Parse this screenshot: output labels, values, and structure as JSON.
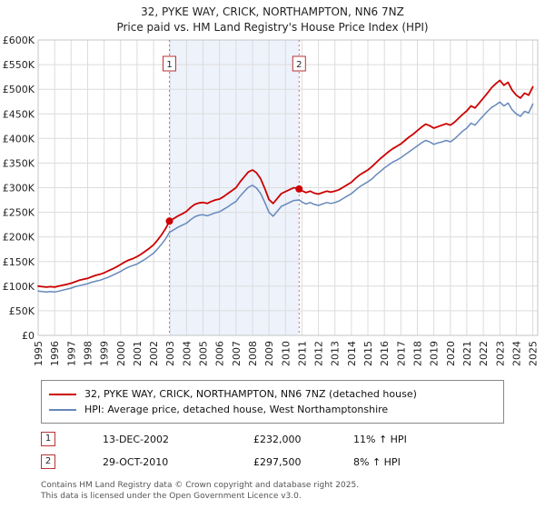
{
  "chart_data": {
    "type": "line",
    "title": "32, PYKE WAY, CRICK, NORTHAMPTON, NN6 7NZ",
    "subtitle": "Price paid vs. HM Land Registry's House Price Index (HPI)",
    "x_range": [
      1995,
      2025.3
    ],
    "y_range_k": [
      0,
      600
    ],
    "y_ticks": [
      {
        "v": 600,
        "label": "£600K"
      },
      {
        "v": 550,
        "label": "£550K"
      },
      {
        "v": 500,
        "label": "£500K"
      },
      {
        "v": 450,
        "label": "£450K"
      },
      {
        "v": 400,
        "label": "£400K"
      },
      {
        "v": 350,
        "label": "£350K"
      },
      {
        "v": 300,
        "label": "£300K"
      },
      {
        "v": 250,
        "label": "£250K"
      },
      {
        "v": 200,
        "label": "£200K"
      },
      {
        "v": 150,
        "label": "£150K"
      },
      {
        "v": 100,
        "label": "£100K"
      },
      {
        "v": 50,
        "label": "£50K"
      },
      {
        "v": 0,
        "label": "£0"
      }
    ],
    "x_ticks": [
      1995,
      1996,
      1997,
      1998,
      1999,
      2000,
      2001,
      2002,
      2003,
      2004,
      2005,
      2006,
      2007,
      2008,
      2009,
      2010,
      2011,
      2012,
      2013,
      2014,
      2015,
      2016,
      2017,
      2018,
      2019,
      2020,
      2021,
      2022,
      2023,
      2024,
      2025
    ],
    "band": {
      "from": 2002.96,
      "to": 2010.83,
      "color": "#edf2fb"
    },
    "vline_color": "#e06666",
    "grid": true,
    "legend_position": "bottom",
    "series": [
      {
        "name": "32, PYKE WAY, CRICK, NORTHAMPTON, NN6 7NZ (detached house)",
        "color": "#cc0000",
        "width": 1.8,
        "points": [
          [
            1995,
            100
          ],
          [
            1995.25,
            99
          ],
          [
            1995.5,
            98
          ],
          [
            1995.75,
            99
          ],
          [
            1996,
            98
          ],
          [
            1996.25,
            100
          ],
          [
            1996.5,
            102
          ],
          [
            1996.75,
            104
          ],
          [
            1997,
            106
          ],
          [
            1997.25,
            109
          ],
          [
            1997.5,
            112
          ],
          [
            1997.75,
            114
          ],
          [
            1998,
            116
          ],
          [
            1998.25,
            119
          ],
          [
            1998.5,
            122
          ],
          [
            1998.75,
            124
          ],
          [
            1999,
            127
          ],
          [
            1999.25,
            131
          ],
          [
            1999.5,
            135
          ],
          [
            1999.75,
            139
          ],
          [
            2000,
            144
          ],
          [
            2000.25,
            149
          ],
          [
            2000.5,
            153
          ],
          [
            2000.75,
            156
          ],
          [
            2001,
            160
          ],
          [
            2001.25,
            165
          ],
          [
            2001.5,
            171
          ],
          [
            2001.75,
            177
          ],
          [
            2002,
            184
          ],
          [
            2002.25,
            194
          ],
          [
            2002.5,
            205
          ],
          [
            2002.75,
            218
          ],
          [
            2002.96,
            232
          ],
          [
            2003.25,
            238
          ],
          [
            2003.5,
            243
          ],
          [
            2003.75,
            247
          ],
          [
            2004,
            252
          ],
          [
            2004.25,
            260
          ],
          [
            2004.5,
            266
          ],
          [
            2004.75,
            269
          ],
          [
            2005,
            270
          ],
          [
            2005.25,
            268
          ],
          [
            2005.5,
            272
          ],
          [
            2005.75,
            275
          ],
          [
            2006,
            277
          ],
          [
            2006.25,
            282
          ],
          [
            2006.5,
            288
          ],
          [
            2006.75,
            294
          ],
          [
            2007,
            300
          ],
          [
            2007.25,
            312
          ],
          [
            2007.5,
            322
          ],
          [
            2007.75,
            332
          ],
          [
            2008,
            336
          ],
          [
            2008.25,
            330
          ],
          [
            2008.5,
            318
          ],
          [
            2008.75,
            298
          ],
          [
            2009,
            276
          ],
          [
            2009.25,
            268
          ],
          [
            2009.5,
            278
          ],
          [
            2009.75,
            288
          ],
          [
            2010,
            292
          ],
          [
            2010.25,
            296
          ],
          [
            2010.5,
            300
          ],
          [
            2010.83,
            297.5
          ],
          [
            2011,
            294
          ],
          [
            2011.25,
            290
          ],
          [
            2011.5,
            293
          ],
          [
            2011.75,
            289
          ],
          [
            2012,
            287
          ],
          [
            2012.25,
            290
          ],
          [
            2012.5,
            293
          ],
          [
            2012.75,
            291
          ],
          [
            2013,
            293
          ],
          [
            2013.25,
            296
          ],
          [
            2013.5,
            301
          ],
          [
            2013.75,
            306
          ],
          [
            2014,
            311
          ],
          [
            2014.25,
            319
          ],
          [
            2014.5,
            326
          ],
          [
            2014.75,
            331
          ],
          [
            2015,
            336
          ],
          [
            2015.25,
            343
          ],
          [
            2015.5,
            351
          ],
          [
            2015.75,
            359
          ],
          [
            2016,
            366
          ],
          [
            2016.25,
            373
          ],
          [
            2016.5,
            379
          ],
          [
            2016.75,
            384
          ],
          [
            2017,
            389
          ],
          [
            2017.25,
            396
          ],
          [
            2017.5,
            403
          ],
          [
            2017.75,
            409
          ],
          [
            2018,
            416
          ],
          [
            2018.25,
            423
          ],
          [
            2018.5,
            429
          ],
          [
            2018.75,
            426
          ],
          [
            2019,
            421
          ],
          [
            2019.25,
            424
          ],
          [
            2019.5,
            427
          ],
          [
            2019.75,
            430
          ],
          [
            2020,
            427
          ],
          [
            2020.25,
            433
          ],
          [
            2020.5,
            441
          ],
          [
            2020.75,
            449
          ],
          [
            2021,
            456
          ],
          [
            2021.25,
            466
          ],
          [
            2021.5,
            462
          ],
          [
            2021.75,
            472
          ],
          [
            2022,
            482
          ],
          [
            2022.25,
            492
          ],
          [
            2022.5,
            503
          ],
          [
            2022.75,
            511
          ],
          [
            2023,
            518
          ],
          [
            2023.25,
            508
          ],
          [
            2023.5,
            514
          ],
          [
            2023.75,
            498
          ],
          [
            2024,
            488
          ],
          [
            2024.25,
            482
          ],
          [
            2024.5,
            492
          ],
          [
            2024.75,
            488
          ],
          [
            2025,
            505
          ]
        ]
      },
      {
        "name": "HPI: Average price, detached house, West Northamptonshire",
        "color": "#6688bb",
        "width": 1.5,
        "points": [
          [
            1995,
            90
          ],
          [
            1995.25,
            89
          ],
          [
            1995.5,
            88
          ],
          [
            1995.75,
            89
          ],
          [
            1996,
            88
          ],
          [
            1996.25,
            90
          ],
          [
            1996.5,
            92
          ],
          [
            1996.75,
            94
          ],
          [
            1997,
            96
          ],
          [
            1997.25,
            99
          ],
          [
            1997.5,
            101
          ],
          [
            1997.75,
            103
          ],
          [
            1998,
            105
          ],
          [
            1998.25,
            108
          ],
          [
            1998.5,
            110
          ],
          [
            1998.75,
            112
          ],
          [
            1999,
            115
          ],
          [
            1999.25,
            118
          ],
          [
            1999.5,
            122
          ],
          [
            1999.75,
            126
          ],
          [
            2000,
            130
          ],
          [
            2000.25,
            135
          ],
          [
            2000.5,
            139
          ],
          [
            2000.75,
            142
          ],
          [
            2001,
            145
          ],
          [
            2001.25,
            150
          ],
          [
            2001.5,
            155
          ],
          [
            2001.75,
            161
          ],
          [
            2002,
            167
          ],
          [
            2002.25,
            176
          ],
          [
            2002.5,
            186
          ],
          [
            2002.75,
            197
          ],
          [
            2002.96,
            209
          ],
          [
            2003.25,
            215
          ],
          [
            2003.5,
            220
          ],
          [
            2003.75,
            224
          ],
          [
            2004,
            228
          ],
          [
            2004.25,
            235
          ],
          [
            2004.5,
            241
          ],
          [
            2004.75,
            244
          ],
          [
            2005,
            245
          ],
          [
            2005.25,
            243
          ],
          [
            2005.5,
            246
          ],
          [
            2005.75,
            249
          ],
          [
            2006,
            251
          ],
          [
            2006.25,
            256
          ],
          [
            2006.5,
            261
          ],
          [
            2006.75,
            267
          ],
          [
            2007,
            272
          ],
          [
            2007.25,
            283
          ],
          [
            2007.5,
            292
          ],
          [
            2007.75,
            301
          ],
          [
            2008,
            305
          ],
          [
            2008.25,
            299
          ],
          [
            2008.5,
            288
          ],
          [
            2008.75,
            270
          ],
          [
            2009,
            250
          ],
          [
            2009.25,
            242
          ],
          [
            2009.5,
            252
          ],
          [
            2009.75,
            262
          ],
          [
            2010,
            266
          ],
          [
            2010.25,
            270
          ],
          [
            2010.5,
            274
          ],
          [
            2010.83,
            275
          ],
          [
            2011,
            271
          ],
          [
            2011.25,
            267
          ],
          [
            2011.5,
            270
          ],
          [
            2011.75,
            266
          ],
          [
            2012,
            264
          ],
          [
            2012.25,
            267
          ],
          [
            2012.5,
            270
          ],
          [
            2012.75,
            268
          ],
          [
            2013,
            270
          ],
          [
            2013.25,
            273
          ],
          [
            2013.5,
            278
          ],
          [
            2013.75,
            283
          ],
          [
            2014,
            288
          ],
          [
            2014.25,
            295
          ],
          [
            2014.5,
            302
          ],
          [
            2014.75,
            307
          ],
          [
            2015,
            312
          ],
          [
            2015.25,
            318
          ],
          [
            2015.5,
            326
          ],
          [
            2015.75,
            333
          ],
          [
            2016,
            340
          ],
          [
            2016.25,
            346
          ],
          [
            2016.5,
            352
          ],
          [
            2016.75,
            356
          ],
          [
            2017,
            361
          ],
          [
            2017.25,
            367
          ],
          [
            2017.5,
            373
          ],
          [
            2017.75,
            379
          ],
          [
            2018,
            385
          ],
          [
            2018.25,
            391
          ],
          [
            2018.5,
            396
          ],
          [
            2018.75,
            393
          ],
          [
            2019,
            388
          ],
          [
            2019.25,
            391
          ],
          [
            2019.5,
            393
          ],
          [
            2019.75,
            396
          ],
          [
            2020,
            393
          ],
          [
            2020.25,
            399
          ],
          [
            2020.5,
            407
          ],
          [
            2020.75,
            415
          ],
          [
            2021,
            421
          ],
          [
            2021.25,
            431
          ],
          [
            2021.5,
            427
          ],
          [
            2021.75,
            437
          ],
          [
            2022,
            446
          ],
          [
            2022.25,
            455
          ],
          [
            2022.5,
            463
          ],
          [
            2022.75,
            468
          ],
          [
            2023,
            474
          ],
          [
            2023.25,
            466
          ],
          [
            2023.5,
            472
          ],
          [
            2023.75,
            458
          ],
          [
            2024,
            450
          ],
          [
            2024.25,
            445
          ],
          [
            2024.5,
            455
          ],
          [
            2024.75,
            452
          ],
          [
            2025,
            470
          ]
        ]
      }
    ],
    "sales": [
      {
        "num": "1",
        "x": 2002.96,
        "value_k": 232,
        "date": "13-DEC-2002",
        "price": "£232,000",
        "hpi_change": "11% ↑ HPI"
      },
      {
        "num": "2",
        "x": 2010.83,
        "value_k": 297.5,
        "date": "29-OCT-2010",
        "price": "£297,500",
        "hpi_change": "8% ↑ HPI"
      }
    ]
  },
  "legend": {
    "items": [
      {
        "label": "32, PYKE WAY, CRICK, NORTHAMPTON, NN6 7NZ (detached house)",
        "color": "#cc0000"
      },
      {
        "label": "HPI: Average price, detached house, West Northamptonshire",
        "color": "#6688bb"
      }
    ]
  },
  "footer": {
    "line1": "Contains HM Land Registry data © Crown copyright and database right 2025.",
    "line2": "This data is licensed under the Open Government Licence v3.0."
  }
}
